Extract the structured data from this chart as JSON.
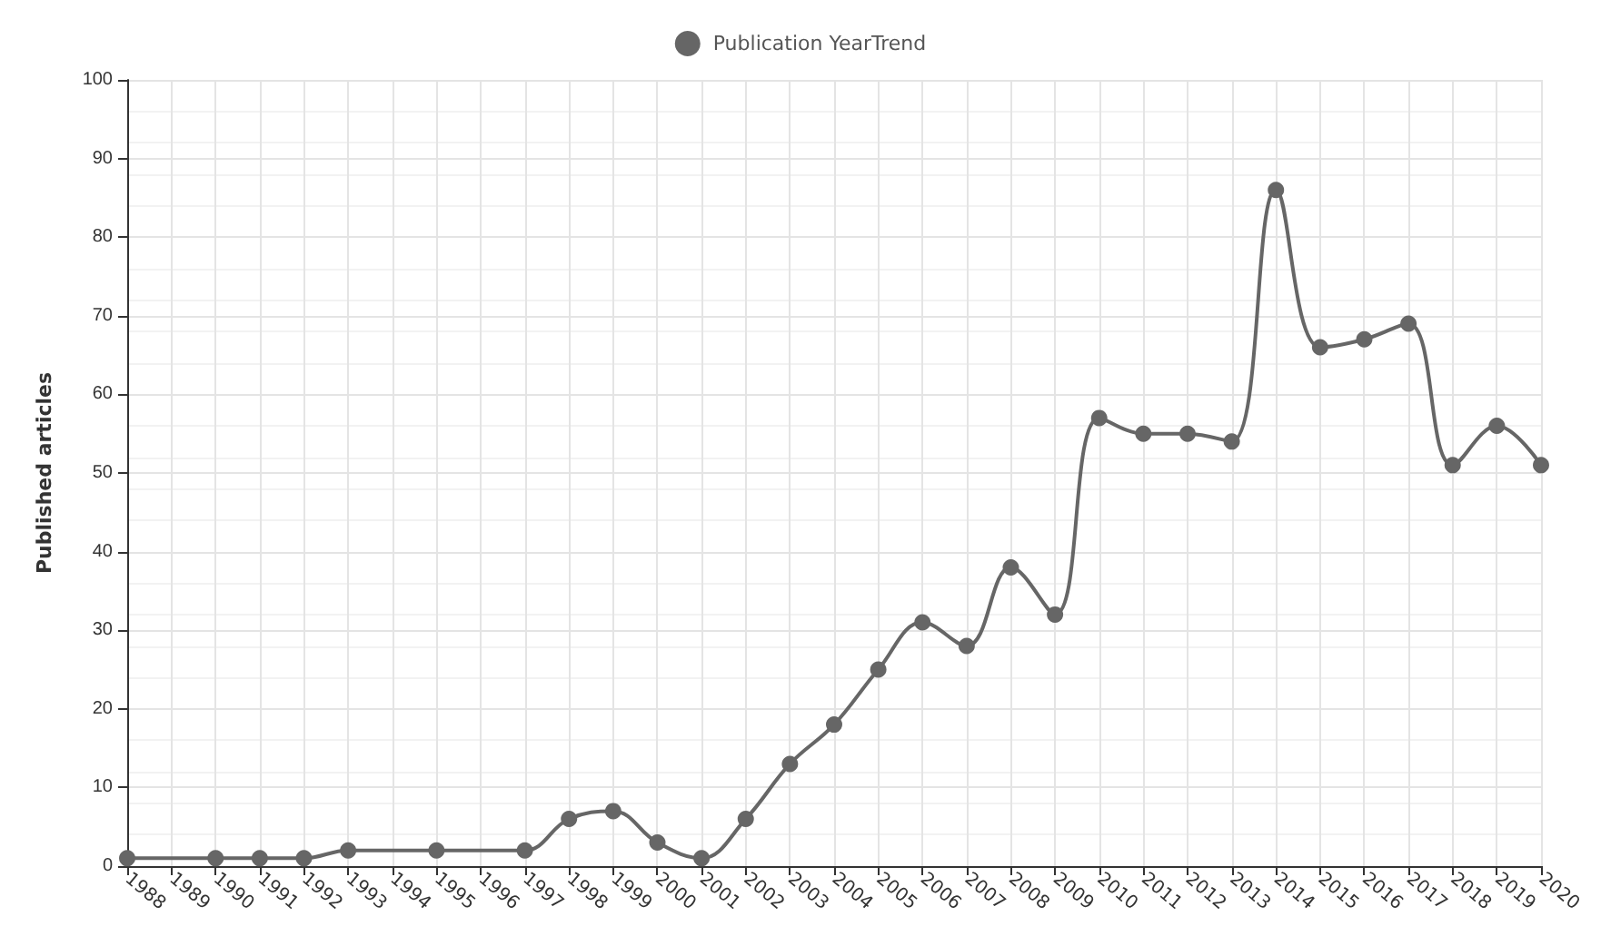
{
  "chart_data": {
    "type": "line",
    "ylabel": "Published articles",
    "categories": [
      "1988",
      "1989",
      "1990",
      "1991",
      "1992",
      "1993",
      "1994",
      "1995",
      "1996",
      "1997",
      "1998",
      "1999",
      "2000",
      "2001",
      "2002",
      "2003",
      "2004",
      "2005",
      "2006",
      "2007",
      "2008",
      "2009",
      "2010",
      "2011",
      "2012",
      "2013",
      "2014",
      "2015",
      "2016",
      "2017",
      "2018",
      "2019",
      "2020"
    ],
    "series": [
      {
        "name": "Publication YearTrend",
        "color": "#666666",
        "values": [
          1,
          null,
          1,
          1,
          1,
          2,
          null,
          2,
          null,
          2,
          6,
          7,
          3,
          1,
          6,
          13,
          18,
          25,
          31,
          28,
          38,
          32,
          57,
          55,
          55,
          54,
          86,
          66,
          67,
          69,
          51,
          56,
          51
        ]
      }
    ],
    "ylim": [
      0,
      100
    ],
    "yticks": [
      0,
      10,
      20,
      30,
      40,
      50,
      60,
      70,
      80,
      90,
      100
    ],
    "grid": true,
    "legend": "top",
    "marker": "circle",
    "line_style": "solid"
  }
}
